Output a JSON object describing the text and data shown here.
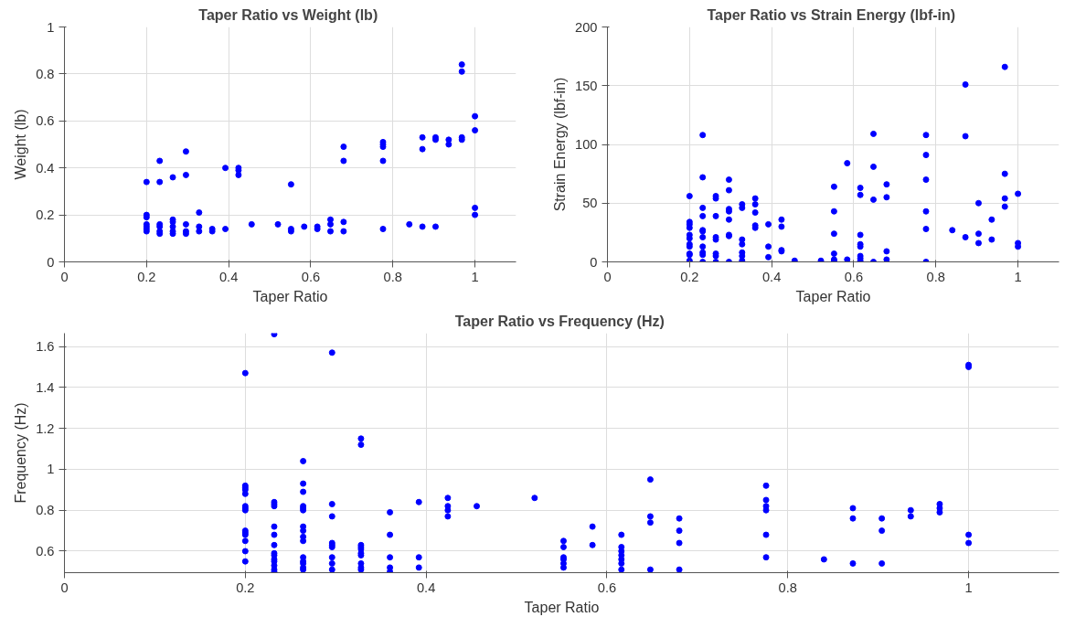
{
  "chart_data": [
    {
      "type": "scatter",
      "title": "Taper Ratio  vs Weight (lb)",
      "xlabel": "Taper Ratio",
      "ylabel": "Weight (lb)",
      "color": "#0000ff",
      "marker": "circle",
      "grid": true,
      "xlim": [
        0,
        1.1
      ],
      "xticks": [
        0,
        0.2,
        0.4,
        0.6,
        0.8,
        1
      ],
      "ylim": [
        0,
        1
      ],
      "yticks": [
        0,
        0.2,
        0.4,
        0.6,
        0.8,
        1
      ],
      "x": [
        0.2,
        0.2,
        0.2,
        0.2,
        0.2,
        0.2,
        0.2,
        0.232,
        0.232,
        0.232,
        0.232,
        0.232,
        0.232,
        0.264,
        0.264,
        0.264,
        0.264,
        0.264,
        0.264,
        0.296,
        0.296,
        0.296,
        0.296,
        0.296,
        0.328,
        0.328,
        0.328,
        0.36,
        0.36,
        0.392,
        0.392,
        0.424,
        0.424,
        0.424,
        0.456,
        0.52,
        0.552,
        0.552,
        0.552,
        0.584,
        0.616,
        0.616,
        0.648,
        0.648,
        0.648,
        0.68,
        0.68,
        0.68,
        0.68,
        0.776,
        0.776,
        0.776,
        0.776,
        0.776,
        0.84,
        0.872,
        0.872,
        0.872,
        0.904,
        0.904,
        0.904,
        0.936,
        0.936,
        0.968,
        0.968,
        0.968,
        0.968,
        1.0,
        1.0,
        1.0,
        1.0
      ],
      "values": [
        0.34,
        0.2,
        0.19,
        0.16,
        0.15,
        0.14,
        0.13,
        0.43,
        0.34,
        0.16,
        0.15,
        0.13,
        0.12,
        0.36,
        0.18,
        0.17,
        0.15,
        0.13,
        0.12,
        0.47,
        0.37,
        0.16,
        0.13,
        0.12,
        0.21,
        0.15,
        0.13,
        0.14,
        0.13,
        0.4,
        0.14,
        0.4,
        0.39,
        0.37,
        0.16,
        0.16,
        0.33,
        0.14,
        0.13,
        0.15,
        0.15,
        0.14,
        0.18,
        0.16,
        0.13,
        0.49,
        0.43,
        0.17,
        0.13,
        0.51,
        0.5,
        0.49,
        0.43,
        0.14,
        0.16,
        0.53,
        0.48,
        0.15,
        0.53,
        0.52,
        0.15,
        0.52,
        0.5,
        0.84,
        0.81,
        0.53,
        0.52,
        0.62,
        0.56,
        0.23,
        0.2
      ]
    },
    {
      "type": "scatter",
      "title": "Taper Ratio  vs Strain Energy (lbf-in)",
      "xlabel": "Taper Ratio",
      "ylabel": "Strain Energy (lbf-in)",
      "color": "#0000ff",
      "marker": "circle",
      "grid": true,
      "xlim": [
        0,
        1.1
      ],
      "xticks": [
        0,
        0.2,
        0.4,
        0.6,
        0.8,
        1
      ],
      "ylim": [
        0,
        200
      ],
      "yticks": [
        0,
        50,
        100,
        150,
        200
      ],
      "x": [
        0.2,
        0.2,
        0.2,
        0.2,
        0.2,
        0.2,
        0.2,
        0.2,
        0.2,
        0.2,
        0.2,
        0.232,
        0.232,
        0.232,
        0.232,
        0.232,
        0.232,
        0.232,
        0.232,
        0.232,
        0.232,
        0.232,
        0.264,
        0.264,
        0.264,
        0.264,
        0.264,
        0.264,
        0.264,
        0.264,
        0.296,
        0.296,
        0.296,
        0.296,
        0.296,
        0.296,
        0.296,
        0.296,
        0.328,
        0.328,
        0.328,
        0.328,
        0.328,
        0.328,
        0.328,
        0.36,
        0.36,
        0.36,
        0.36,
        0.36,
        0.392,
        0.392,
        0.392,
        0.424,
        0.424,
        0.424,
        0.424,
        0.456,
        0.52,
        0.552,
        0.552,
        0.552,
        0.552,
        0.552,
        0.552,
        0.584,
        0.584,
        0.616,
        0.616,
        0.616,
        0.616,
        0.616,
        0.616,
        0.616,
        0.616,
        0.648,
        0.648,
        0.648,
        0.648,
        0.68,
        0.68,
        0.68,
        0.68,
        0.776,
        0.776,
        0.776,
        0.776,
        0.776,
        0.776,
        0.84,
        0.872,
        0.872,
        0.872,
        0.904,
        0.904,
        0.904,
        0.936,
        0.936,
        0.968,
        0.968,
        0.968,
        0.968,
        1.0,
        1.0,
        1.0
      ],
      "values": [
        56,
        34,
        32,
        29,
        23,
        20,
        15,
        13,
        7,
        6,
        1,
        108,
        72,
        46,
        39,
        27,
        26,
        21,
        13,
        8,
        6,
        0,
        56,
        54,
        39,
        21,
        19,
        7,
        5,
        0,
        70,
        61,
        45,
        43,
        36,
        23,
        22,
        0,
        49,
        46,
        19,
        15,
        8,
        5,
        1,
        54,
        49,
        42,
        31,
        29,
        32,
        13,
        4,
        36,
        30,
        10,
        9,
        1,
        1,
        64,
        43,
        24,
        7,
        2,
        1,
        84,
        2,
        63,
        57,
        23,
        15,
        13,
        5,
        3,
        1,
        109,
        81,
        53,
        0,
        66,
        55,
        9,
        2,
        108,
        91,
        70,
        43,
        28,
        0,
        27,
        151,
        107,
        21,
        50,
        24,
        16,
        36,
        19,
        166,
        75,
        54,
        47,
        58,
        16,
        13
      ]
    },
    {
      "type": "scatter",
      "title": "Taper Ratio  vs Frequency (Hz)",
      "xlabel": "Taper Ratio",
      "ylabel": "Frequency (Hz)",
      "color": "#0000ff",
      "marker": "circle",
      "grid": true,
      "xlim": [
        0,
        1.1
      ],
      "xticks": [
        0,
        0.2,
        0.4,
        0.6,
        0.8,
        1
      ],
      "ylim": [
        0.495,
        1.665
      ],
      "yticks": [
        0.6,
        0.8,
        1,
        1.2,
        1.4,
        1.6
      ],
      "x": [
        0.2,
        0.2,
        0.2,
        0.2,
        0.2,
        0.2,
        0.2,
        0.2,
        0.2,
        0.2,
        0.2,
        0.2,
        0.2,
        0.2,
        0.232,
        0.232,
        0.232,
        0.232,
        0.232,
        0.232,
        0.232,
        0.232,
        0.232,
        0.232,
        0.232,
        0.232,
        0.232,
        0.232,
        0.264,
        0.264,
        0.264,
        0.264,
        0.264,
        0.264,
        0.264,
        0.264,
        0.264,
        0.264,
        0.264,
        0.264,
        0.264,
        0.264,
        0.264,
        0.296,
        0.296,
        0.296,
        0.296,
        0.296,
        0.296,
        0.296,
        0.296,
        0.296,
        0.328,
        0.328,
        0.328,
        0.328,
        0.328,
        0.328,
        0.328,
        0.328,
        0.328,
        0.328,
        0.36,
        0.36,
        0.36,
        0.36,
        0.36,
        0.392,
        0.392,
        0.392,
        0.424,
        0.424,
        0.424,
        0.424,
        0.456,
        0.52,
        0.552,
        0.552,
        0.552,
        0.552,
        0.552,
        0.552,
        0.584,
        0.584,
        0.616,
        0.616,
        0.616,
        0.616,
        0.616,
        0.616,
        0.616,
        0.648,
        0.648,
        0.648,
        0.648,
        0.68,
        0.68,
        0.68,
        0.68,
        0.776,
        0.776,
        0.776,
        0.776,
        0.776,
        0.776,
        0.84,
        0.872,
        0.872,
        0.872,
        0.904,
        0.904,
        0.904,
        0.936,
        0.936,
        0.968,
        0.968,
        0.968,
        1.0,
        1.0,
        1.0,
        1.0
      ],
      "values": [
        1.47,
        0.92,
        0.91,
        0.9,
        0.88,
        0.82,
        0.81,
        0.8,
        0.7,
        0.69,
        0.68,
        0.65,
        0.6,
        0.55,
        1.66,
        0.84,
        0.83,
        0.82,
        0.72,
        0.68,
        0.63,
        0.59,
        0.58,
        0.56,
        0.55,
        0.53,
        0.51,
        0.5,
        1.04,
        0.93,
        0.89,
        0.82,
        0.81,
        0.8,
        0.72,
        0.7,
        0.67,
        0.65,
        0.57,
        0.55,
        0.54,
        0.52,
        0.51,
        1.57,
        0.83,
        0.77,
        0.64,
        0.63,
        0.62,
        0.57,
        0.54,
        0.51,
        1.15,
        1.12,
        0.63,
        0.62,
        0.61,
        0.59,
        0.58,
        0.54,
        0.52,
        0.51,
        0.79,
        0.68,
        0.57,
        0.52,
        0.5,
        0.84,
        0.57,
        0.52,
        0.86,
        0.82,
        0.8,
        0.77,
        0.82,
        0.86,
        0.65,
        0.62,
        0.57,
        0.56,
        0.54,
        0.52,
        0.72,
        0.63,
        0.68,
        0.62,
        0.6,
        0.58,
        0.56,
        0.54,
        0.51,
        0.95,
        0.77,
        0.74,
        0.51,
        0.76,
        0.7,
        0.64,
        0.51,
        0.92,
        0.85,
        0.82,
        0.8,
        0.68,
        0.57,
        0.56,
        0.81,
        0.76,
        0.54,
        0.76,
        0.7,
        0.54,
        0.8,
        0.77,
        0.83,
        0.81,
        0.79,
        1.51,
        1.5,
        0.68,
        0.64
      ]
    }
  ]
}
